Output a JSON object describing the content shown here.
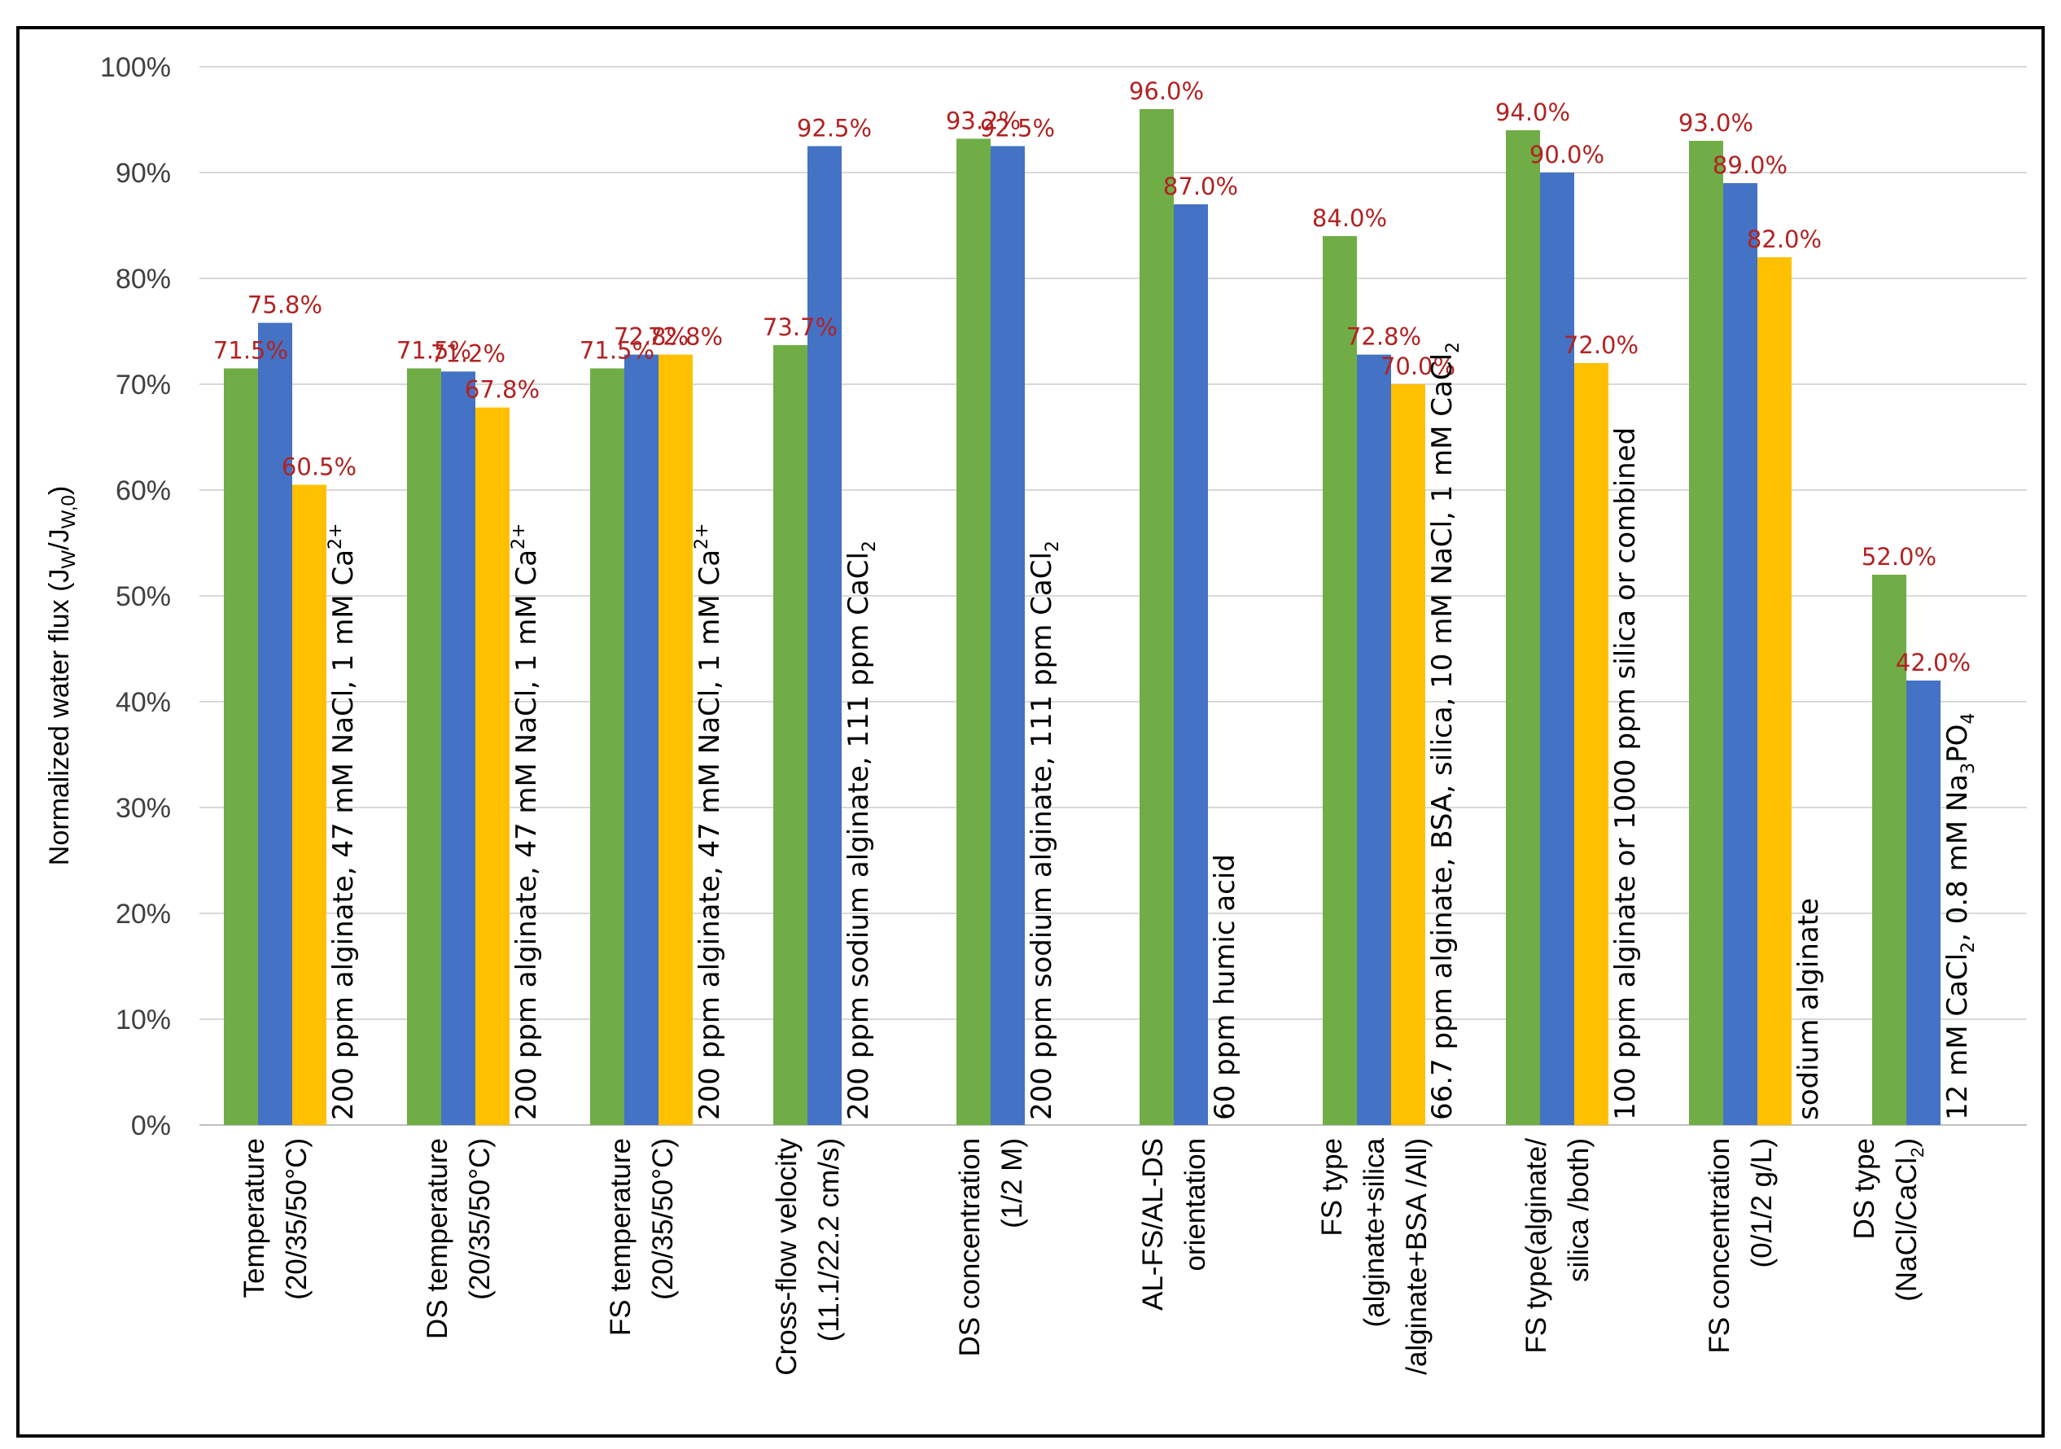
{
  "chart_data": {
    "type": "bar",
    "ylabel": "Normalized water flux (J",
    "ylabel_sub1": "W",
    "ylabel_mid": "/J",
    "ylabel_sub2": "W,0",
    "ylabel_end": ")",
    "ylim": [
      0,
      100
    ],
    "yticks": [
      "0%",
      "10%",
      "20%",
      "30%",
      "40%",
      "50%",
      "60%",
      "70%",
      "80%",
      "90%",
      "100%"
    ],
    "grid": true,
    "colors": [
      "#70ad47",
      "#4472c4",
      "#ffc000"
    ],
    "label_color": "#b22222",
    "groups": [
      {
        "category_lines": [
          "Temperature",
          "(20/35/50°C)"
        ],
        "values": [
          71.5,
          75.8,
          60.5
        ],
        "labels": [
          "71.5%",
          "75.8%",
          "60.5%"
        ],
        "note": "200 ppm alginate, 47 mM NaCl, 1 mM Ca",
        "note_sup": "2+"
      },
      {
        "category_lines": [
          "DS temperature",
          "(20/35/50°C)"
        ],
        "values": [
          71.5,
          71.2,
          67.8
        ],
        "labels": [
          "71.5%",
          "71.2%",
          "67.8%"
        ],
        "note": "200 ppm alginate, 47 mM NaCl, 1 mM Ca",
        "note_sup": "2+"
      },
      {
        "category_lines": [
          "FS temperature",
          "(20/35/50°C)"
        ],
        "values": [
          71.5,
          72.8,
          72.8
        ],
        "labels": [
          "71.5%",
          "72.8%",
          "72.8%"
        ],
        "note": "200 ppm alginate, 47 mM NaCl, 1 mM Ca",
        "note_sup": "2+"
      },
      {
        "category_lines": [
          "Cross-flow velocity",
          "(11.1/22.2 cm/s)"
        ],
        "values": [
          73.7,
          92.5
        ],
        "labels": [
          "73.7%",
          "92.5%"
        ],
        "note": "200 ppm sodium alginate, 111 ppm CaCl",
        "note_sub": "2"
      },
      {
        "category_lines": [
          "DS concentration",
          "(1/2 M)"
        ],
        "values": [
          93.2,
          92.5
        ],
        "labels": [
          "93.2%",
          "92.5%"
        ],
        "note": "200 ppm sodium alginate, 111 ppm CaCl",
        "note_sub": "2"
      },
      {
        "category_lines": [
          "AL-FS/AL-DS",
          "orientation"
        ],
        "values": [
          96.0,
          87.0
        ],
        "labels": [
          "96.0%",
          "87.0%"
        ],
        "note": "60 ppm humic acid"
      },
      {
        "category_lines": [
          "FS type",
          "(alginate+silica",
          "/alginate+BSA /All)"
        ],
        "values": [
          84.0,
          72.8,
          70.0
        ],
        "labels": [
          "84.0%",
          "72.8%",
          "70.0%"
        ],
        "note": "66.7 ppm alginate, BSA, silica, 10 mM NaCl, 1 mM CaCl",
        "note_sub": "2"
      },
      {
        "category_lines": [
          "FS type(alginate/",
          "silica /both)"
        ],
        "values": [
          94.0,
          90.0,
          72.0
        ],
        "labels": [
          "94.0%",
          "90.0%",
          "72.0%"
        ],
        "note": "100 ppm alginate or 1000 ppm silica or combined"
      },
      {
        "category_lines": [
          "FS concentration",
          "(0/1/2 g/L)"
        ],
        "values": [
          93.0,
          89.0,
          82.0
        ],
        "labels": [
          "93.0%",
          "89.0%",
          "82.0%"
        ],
        "note": "sodium alginate"
      },
      {
        "category_lines": [
          "DS type",
          "(NaCl/CaCl",
          ")"
        ],
        "category_sub": "2",
        "values": [
          52.0,
          42.0
        ],
        "labels": [
          "52.0%",
          "42.0%"
        ],
        "note": "12 mM CaCl",
        "note_sub": "2",
        "note_tail": ", 0.8 mM Na",
        "note_sub2": "3",
        "note_tail2": "PO",
        "note_sub3": "4"
      }
    ]
  }
}
